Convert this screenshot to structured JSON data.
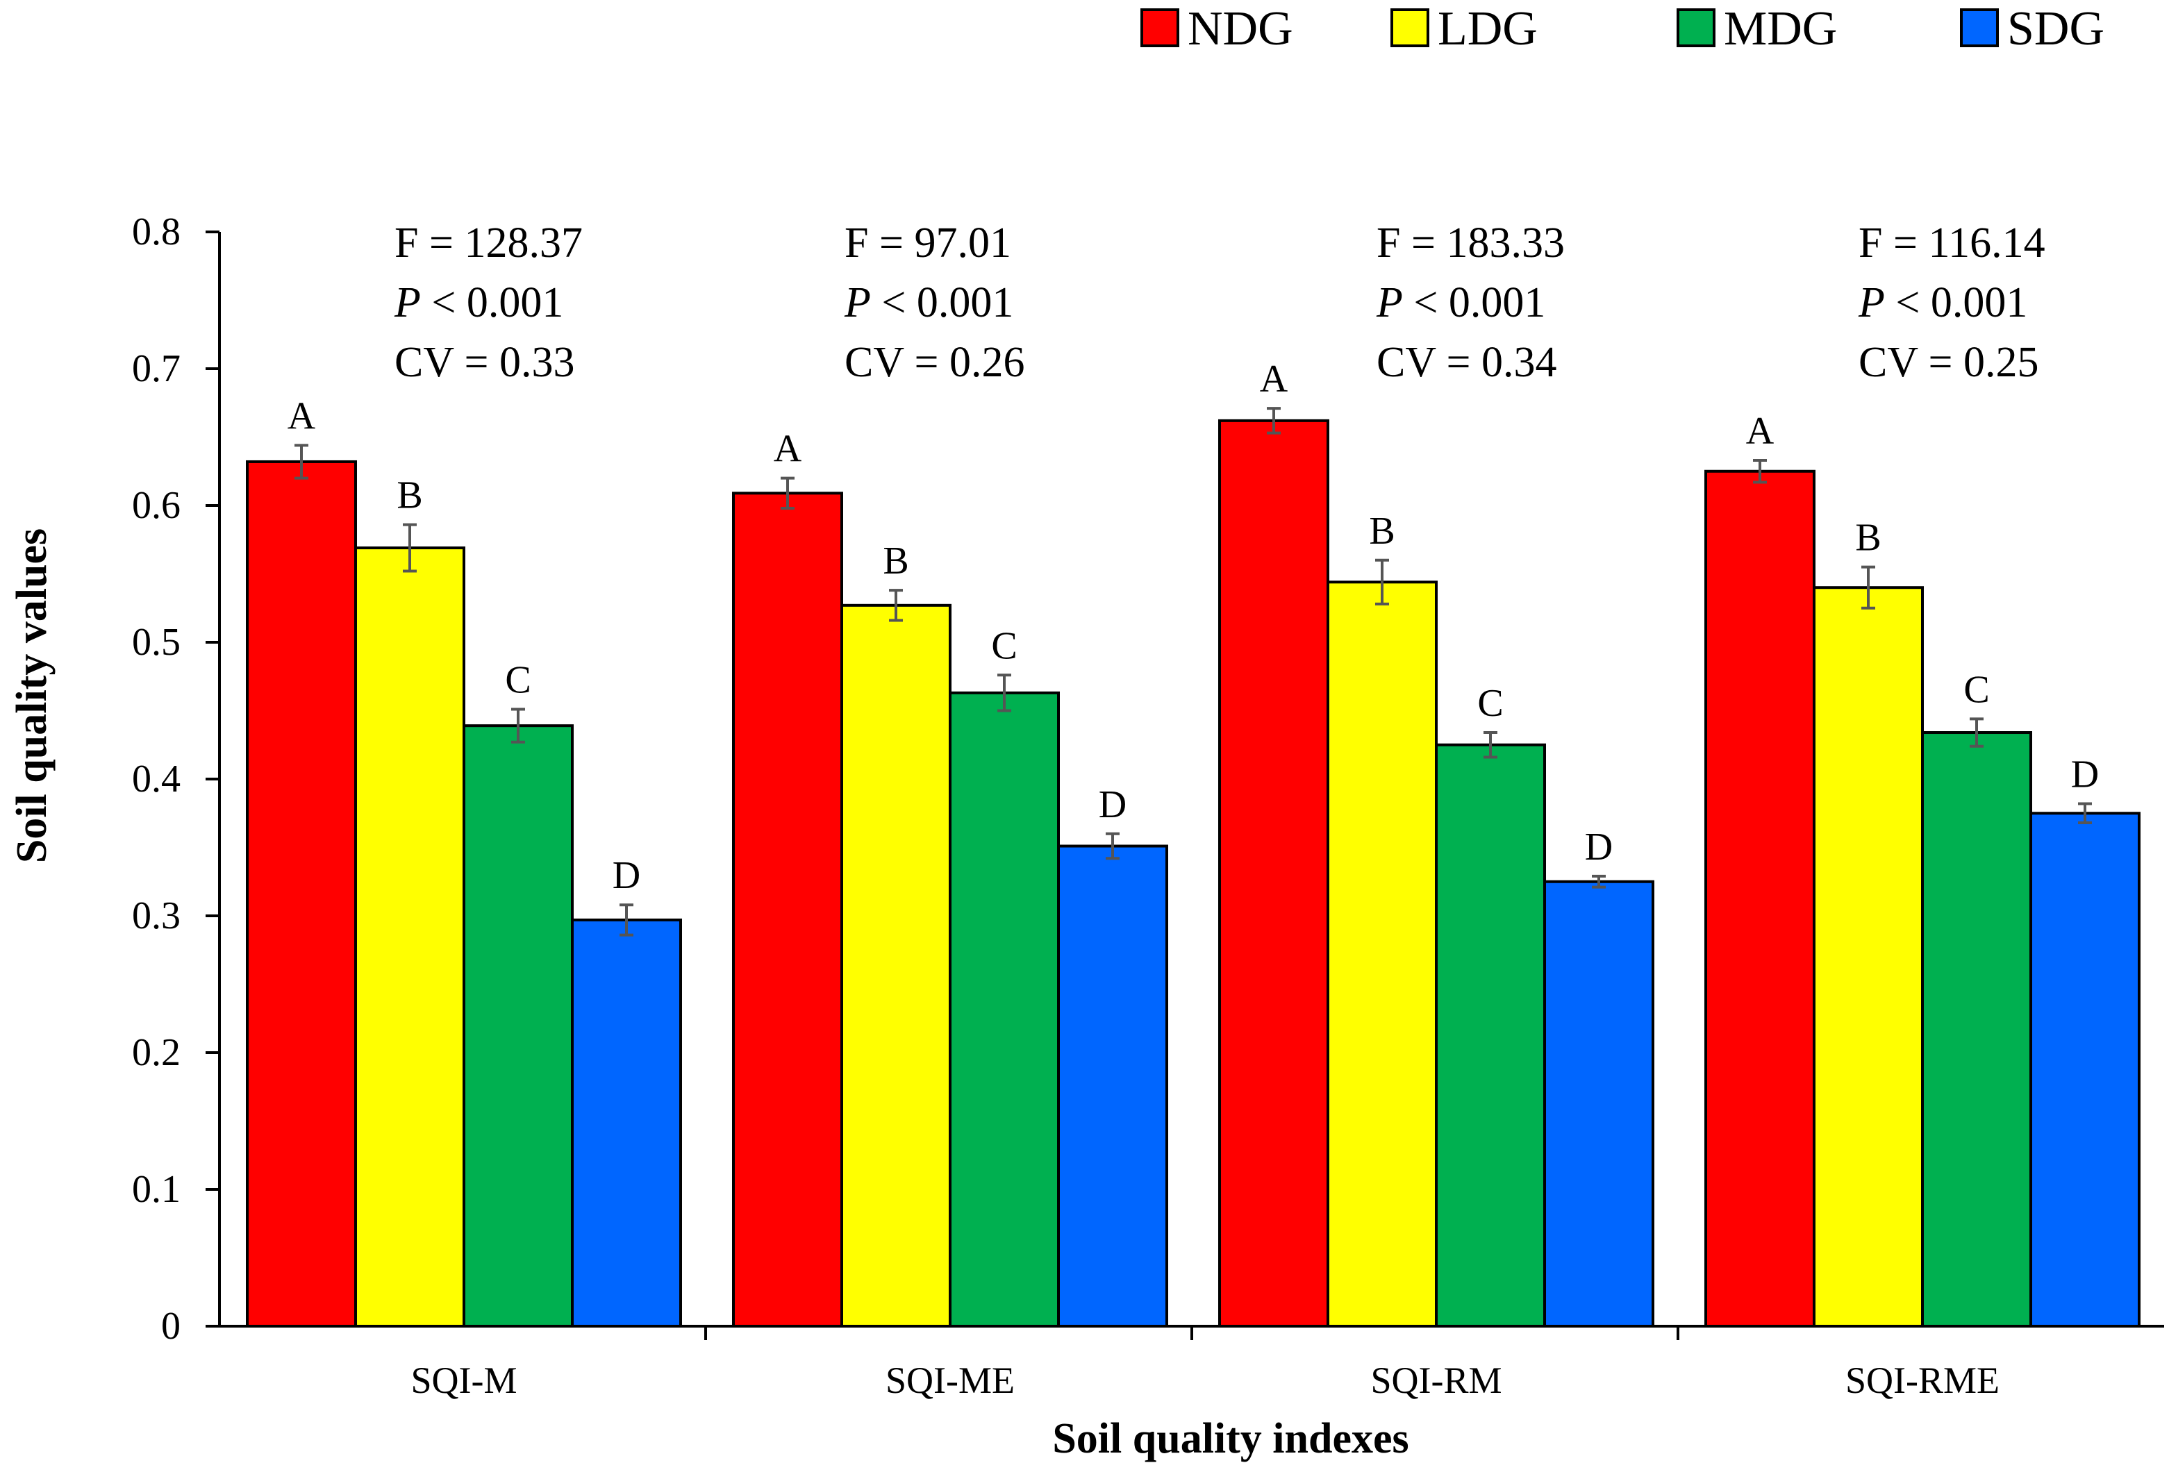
{
  "chart_data": {
    "type": "bar",
    "title": "",
    "xlabel": "Soil quality indexes",
    "ylabel": "Soil quality values",
    "ylim": [
      0,
      0.8
    ],
    "yticks": [
      "0",
      "0.1",
      "0.2",
      "0.3",
      "0.4",
      "0.5",
      "0.6",
      "0.7",
      "0.8"
    ],
    "categories": [
      "SQI-M",
      "SQI-ME",
      "SQI-RM",
      "SQI-RME"
    ],
    "legend_position": "top-right",
    "series": [
      {
        "name": "NDG",
        "color": "#ff0000",
        "values": [
          0.632,
          0.609,
          0.662,
          0.625
        ],
        "errors": [
          0.012,
          0.011,
          0.009,
          0.008
        ],
        "letters": [
          "A",
          "A",
          "A",
          "A"
        ]
      },
      {
        "name": "LDG",
        "color": "#ffff00",
        "values": [
          0.569,
          0.527,
          0.544,
          0.54
        ],
        "errors": [
          0.017,
          0.011,
          0.016,
          0.015
        ],
        "letters": [
          "B",
          "B",
          "B",
          "B"
        ]
      },
      {
        "name": "MDG",
        "color": "#00b050",
        "values": [
          0.439,
          0.463,
          0.425,
          0.434
        ],
        "errors": [
          0.012,
          0.013,
          0.009,
          0.01
        ],
        "letters": [
          "C",
          "C",
          "C",
          "C"
        ]
      },
      {
        "name": "SDG",
        "color": "#0066ff",
        "values": [
          0.297,
          0.351,
          0.325,
          0.375
        ],
        "errors": [
          0.011,
          0.009,
          0.004,
          0.007
        ],
        "letters": [
          "D",
          "D",
          "D",
          "D"
        ]
      }
    ],
    "annotations": [
      {
        "f": "F = 128.37",
        "p_symbol": "P",
        "p_rest": " < 0.001",
        "cv": "CV = 0.33"
      },
      {
        "f": "F = 97.01",
        "p_symbol": "P",
        "p_rest": " < 0.001",
        "cv": "CV = 0.26"
      },
      {
        "f": "F = 183.33",
        "p_symbol": "P",
        "p_rest": " < 0.001",
        "cv": "CV = 0.34"
      },
      {
        "f": "F = 116.14",
        "p_symbol": "P",
        "p_rest": " < 0.001",
        "cv": "CV = 0.25"
      }
    ]
  }
}
